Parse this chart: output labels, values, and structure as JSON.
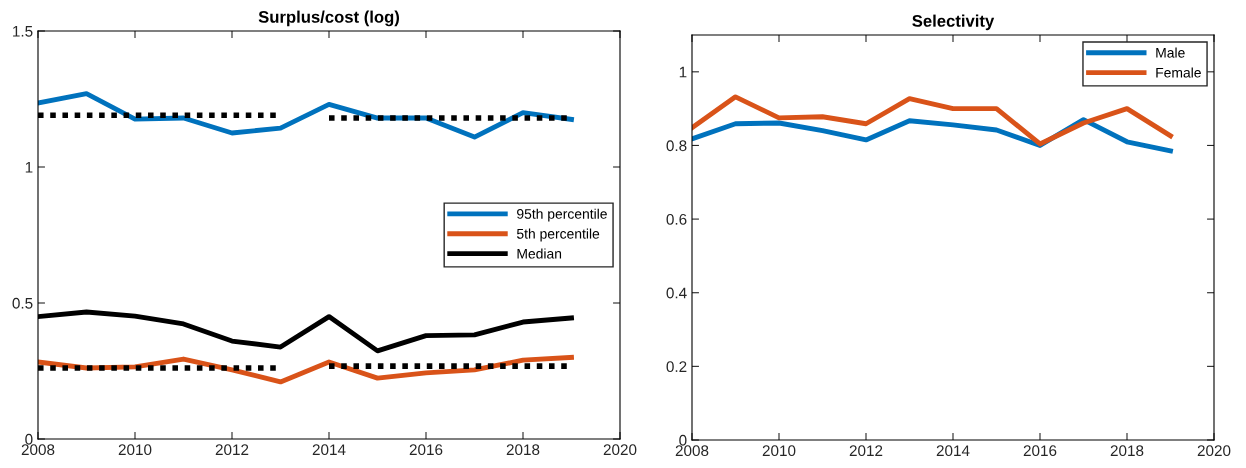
{
  "chart_data": [
    {
      "type": "line",
      "title": "Surplus/cost (log)",
      "x": [
        2008,
        2009,
        2010,
        2011,
        2012,
        2013,
        2014,
        2015,
        2016,
        2017,
        2018,
        2019
      ],
      "xlim": [
        2008,
        2020
      ],
      "xticks": [
        2008,
        2010,
        2012,
        2014,
        2016,
        2018,
        2020
      ],
      "ylim": [
        0,
        1.5
      ],
      "yticks": [
        0,
        0.5,
        1,
        1.5
      ],
      "legend": "right",
      "grid": false,
      "series": [
        {
          "name": "95th percentile",
          "color": "#0072bd",
          "values": [
            1.235,
            1.27,
            1.176,
            1.18,
            1.125,
            1.143,
            1.23,
            1.18,
            1.18,
            1.11,
            1.2,
            1.175
          ]
        },
        {
          "name": "5th percentile",
          "color": "#d95319",
          "values": [
            0.283,
            0.261,
            0.265,
            0.294,
            0.254,
            0.21,
            0.283,
            0.224,
            0.243,
            0.254,
            0.29,
            0.3
          ]
        },
        {
          "name": "Median",
          "color": "#000000",
          "values": [
            0.45,
            0.467,
            0.452,
            0.423,
            0.36,
            0.338,
            0.45,
            0.324,
            0.38,
            0.383,
            0.43,
            0.445
          ]
        },
        {
          "color": "#000000",
          "line_style": "dotted",
          "x": [
            2008,
            2013
          ],
          "values": [
            1.19,
            1.19
          ]
        },
        {
          "color": "#000000",
          "line_style": "dotted",
          "x": [
            2014,
            2019
          ],
          "values": [
            1.18,
            1.18
          ]
        },
        {
          "color": "#000000",
          "line_style": "dotted",
          "x": [
            2008,
            2013
          ],
          "values": [
            0.261,
            0.261
          ]
        },
        {
          "color": "#000000",
          "line_style": "dotted",
          "x": [
            2014,
            2019
          ],
          "values": [
            0.268,
            0.268
          ]
        }
      ]
    },
    {
      "type": "line",
      "title": "Selectivity",
      "x": [
        2008,
        2009,
        2010,
        2011,
        2012,
        2013,
        2014,
        2015,
        2016,
        2017,
        2018,
        2019
      ],
      "xlim": [
        2008,
        2020
      ],
      "xticks": [
        2008,
        2010,
        2012,
        2014,
        2016,
        2018,
        2020
      ],
      "ylim": [
        0,
        1.1
      ],
      "yticks": [
        0,
        0.2,
        0.4,
        0.6,
        0.8,
        1
      ],
      "legend": "top right",
      "grid": false,
      "series": [
        {
          "name": "Male",
          "color": "#0072bd",
          "values": [
            0.818,
            0.859,
            0.861,
            0.84,
            0.815,
            0.867,
            0.856,
            0.842,
            0.8,
            0.87,
            0.81,
            0.785
          ]
        },
        {
          "name": "Female",
          "color": "#d95319",
          "values": [
            0.848,
            0.932,
            0.875,
            0.878,
            0.859,
            0.927,
            0.9,
            0.9,
            0.804,
            0.861,
            0.9,
            0.826
          ]
        }
      ]
    }
  ]
}
